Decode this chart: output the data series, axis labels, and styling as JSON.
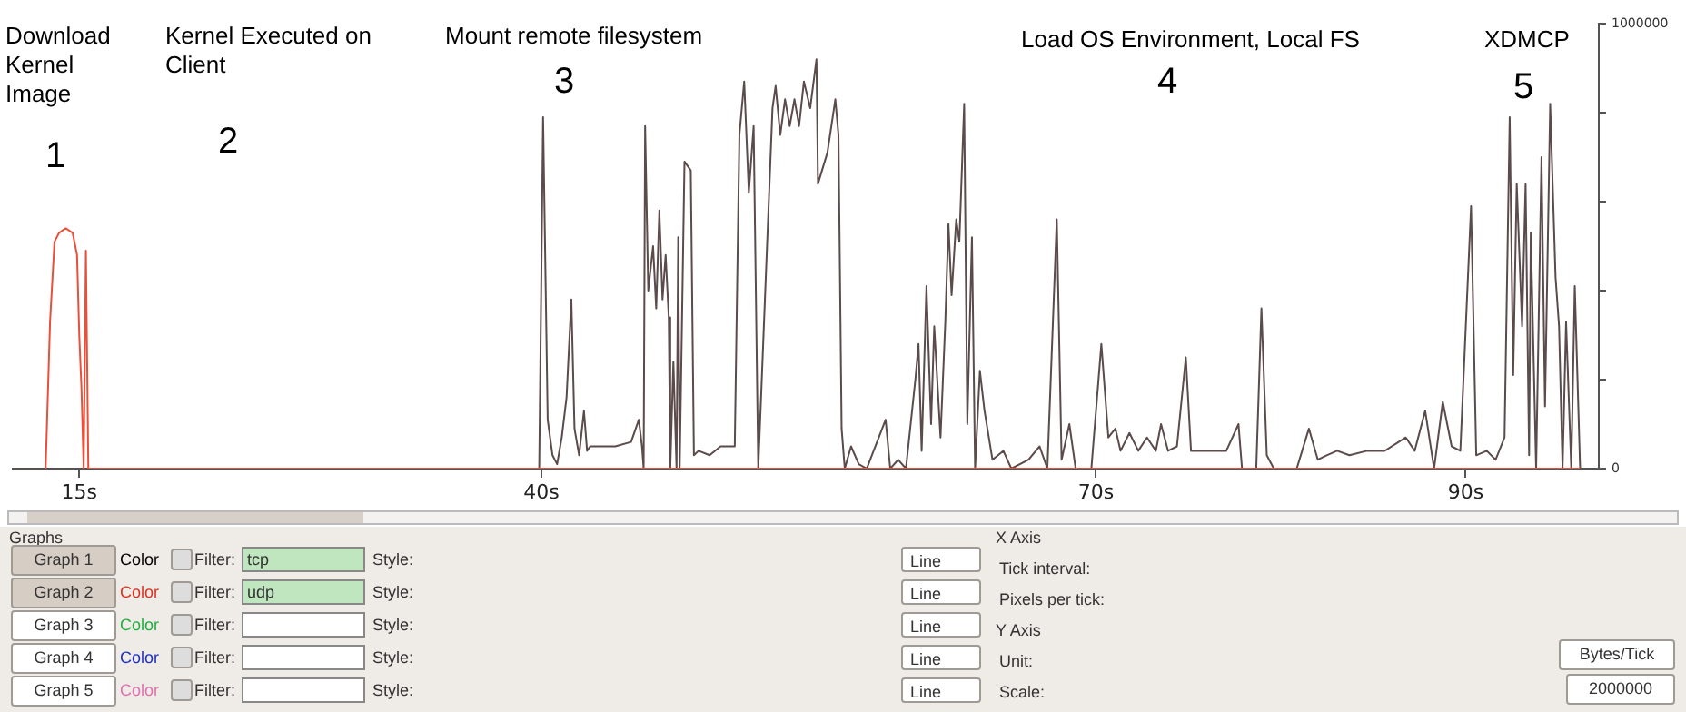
{
  "chart_data": {
    "type": "line",
    "xlim": [
      11.4,
      97.2
    ],
    "ylim": [
      0,
      1000000
    ],
    "xticks": [
      {
        "value": 15,
        "label": "15s"
      },
      {
        "value": 40,
        "label": "40s"
      },
      {
        "value": 70,
        "label": "70s"
      },
      {
        "value": 90,
        "label": "90s"
      }
    ],
    "yticks": [
      0,
      {
        "value": 200000,
        "label": null
      },
      {
        "value": 400000,
        "label": null
      },
      {
        "value": 600000,
        "label": null
      },
      {
        "value": 800000,
        "label": null
      },
      1000000
    ],
    "annotations": [
      "Download Kernel Image",
      "1",
      "Kernel Executed on Client",
      "2",
      "Mount remote filesystem",
      "3",
      "Load OS Environment, Local FS",
      "4",
      "XDMCP",
      "5",
      "Graphs",
      "Graph 1",
      "Graph 2",
      "Graph 3",
      "Graph 4",
      "Graph 5",
      "Color",
      "Color",
      "Color",
      "Color",
      "Color",
      "Filter:",
      "Filter:",
      "Filter:",
      "Filter:",
      "Filter:",
      "tcp",
      "udp",
      "Style:",
      "Style:",
      "Style:",
      "Style:",
      "Style:",
      "Line",
      "Line",
      "Line",
      "Line",
      "Line",
      "X Axis",
      "Tick interval:",
      "Pixels per tick:",
      "Y Axis",
      "Unit:",
      "Bytes/Tick",
      "Scale:",
      "2000000"
    ],
    "series": [
      {
        "color": "#5b4b4b",
        "x": [
          11.5,
          39.88,
          40.09,
          40.34,
          40.6,
          40.85,
          41.1,
          41.36,
          41.62,
          41.79,
          42.04,
          42.3,
          42.47,
          42.64,
          44.0,
          44.85,
          45.27,
          45.44,
          45.53,
          45.61,
          45.78,
          46.04,
          46.21,
          46.38,
          46.55,
          46.72,
          46.89,
          46.97,
          47.14,
          47.31,
          47.4,
          47.48,
          47.74,
          48.08,
          48.25,
          48.5,
          49.1,
          49.69,
          50.46,
          50.71,
          50.97,
          51.22,
          51.48,
          51.73,
          52.5,
          52.67,
          52.92,
          53.18,
          53.43,
          53.69,
          53.94,
          54.2,
          54.54,
          54.88,
          54.96,
          55.47,
          55.9,
          56.07,
          56.24,
          56.41,
          56.75,
          57.17,
          57.6,
          58.62,
          58.87,
          59.3,
          59.72,
          60.23,
          60.4,
          60.57,
          60.83,
          61.08,
          61.25,
          61.59,
          61.85,
          62.02,
          62.19,
          62.44,
          62.61,
          62.87,
          63.04,
          63.29,
          63.46,
          63.72,
          63.97,
          64.4,
          64.99,
          65.42,
          66.35,
          66.95,
          67.37,
          67.88,
          68.14,
          68.56,
          68.9,
          69.75,
          70.29,
          70.67,
          71.05,
          71.33,
          71.81,
          72.29,
          72.76,
          73.24,
          73.52,
          73.9,
          74.38,
          74.86,
          75.14,
          76.1,
          77.05,
          77.71,
          77.9,
          78.67,
          78.95,
          79.24,
          79.62,
          80.86,
          81.52,
          82.0,
          82.48,
          83.05,
          83.71,
          84.67,
          85.62,
          86.76,
          87.24,
          87.81,
          88.29,
          88.76,
          89.24,
          89.71,
          90.29,
          90.57,
          91.14,
          91.62,
          92.1,
          92.38,
          92.57,
          92.76,
          93.05,
          93.24,
          93.43,
          93.52,
          93.81,
          94.1,
          94.29,
          94.57,
          94.86,
          95.05,
          95.24,
          95.43,
          95.71,
          95.9,
          96.19
        ],
        "values": [
          0,
          0,
          790000,
          110000,
          30000,
          10000,
          70000,
          160000,
          380000,
          90000,
          30000,
          130000,
          40000,
          50000,
          50000,
          60000,
          110000,
          50000,
          0,
          770000,
          400000,
          500000,
          360000,
          580000,
          380000,
          480000,
          340000,
          0,
          240000,
          0,
          520000,
          0,
          690000,
          670000,
          30000,
          40000,
          30000,
          50000,
          50000,
          750000,
          870000,
          620000,
          770000,
          0,
          810000,
          860000,
          750000,
          830000,
          770000,
          830000,
          770000,
          870000,
          810000,
          920000,
          640000,
          710000,
          830000,
          750000,
          90000,
          0,
          50000,
          10000,
          0,
          110000,
          0,
          20000,
          0,
          200000,
          280000,
          40000,
          410000,
          100000,
          320000,
          70000,
          330000,
          550000,
          390000,
          560000,
          510000,
          820000,
          100000,
          520000,
          0,
          220000,
          130000,
          20000,
          40000,
          0,
          20000,
          50000,
          0,
          560000,
          20000,
          100000,
          0,
          0,
          280000,
          70000,
          90000,
          40000,
          80000,
          40000,
          70000,
          40000,
          100000,
          40000,
          50000,
          250000,
          40000,
          40000,
          40000,
          100000,
          0,
          0,
          360000,
          30000,
          0,
          0,
          90000,
          20000,
          30000,
          40000,
          30000,
          40000,
          40000,
          70000,
          40000,
          130000,
          0,
          150000,
          50000,
          40000,
          590000,
          30000,
          40000,
          20000,
          70000,
          790000,
          210000,
          640000,
          320000,
          640000,
          30000,
          530000,
          0,
          700000,
          140000,
          820000,
          430000,
          320000,
          0,
          330000,
          0,
          410000,
          0
        ]
      },
      {
        "color": "#e8503a",
        "x": [
          13.18,
          13.42,
          13.66,
          13.91,
          14.27,
          14.64,
          14.88,
          15.0,
          15.12,
          15.24,
          15.36,
          15.49,
          96.19
        ],
        "values": [
          0,
          330000,
          510000,
          530000,
          540000,
          530000,
          480000,
          300000,
          180000,
          0,
          490000,
          0,
          0
        ]
      }
    ]
  }
}
